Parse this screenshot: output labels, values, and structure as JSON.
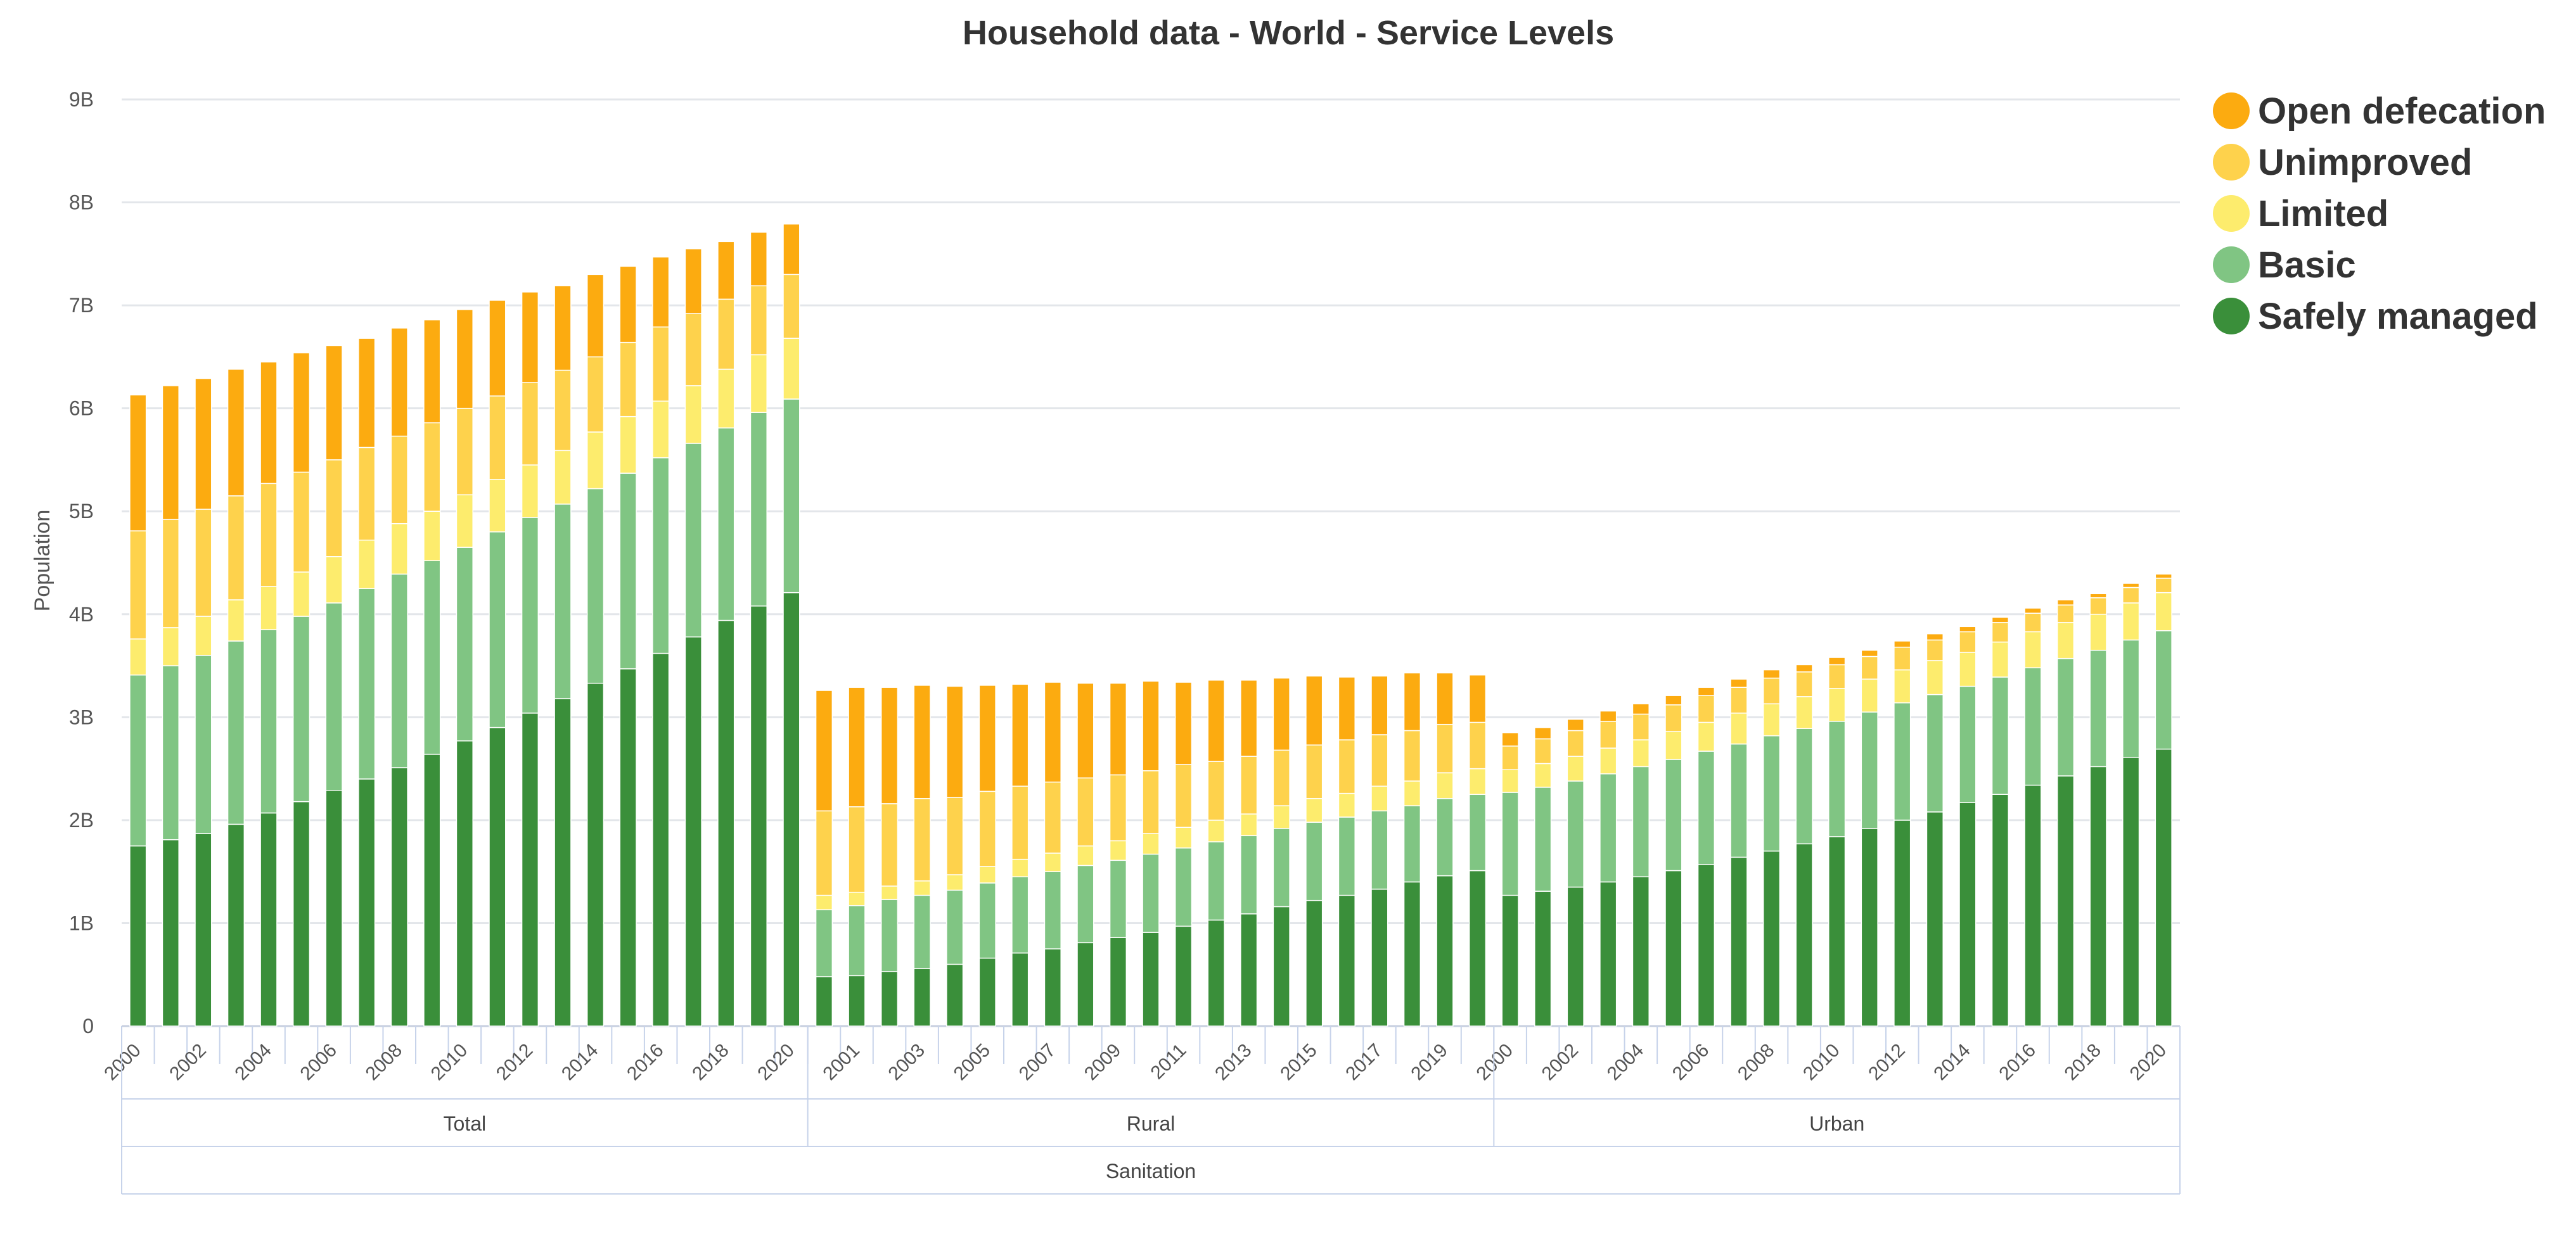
{
  "chart_data": {
    "type": "bar",
    "stacked": true,
    "title": "Household data - World - Service Levels",
    "xlabel": "",
    "ylabel": "Population",
    "ylim": [
      0,
      9000000000
    ],
    "y_ticks": [
      {
        "value": 0,
        "label": "0"
      },
      {
        "value": 1000000000,
        "label": "1B"
      },
      {
        "value": 2000000000,
        "label": "2B"
      },
      {
        "value": 3000000000,
        "label": "3B"
      },
      {
        "value": 4000000000,
        "label": "4B"
      },
      {
        "value": 5000000000,
        "label": "5B"
      },
      {
        "value": 6000000000,
        "label": "6B"
      },
      {
        "value": 7000000000,
        "label": "7B"
      },
      {
        "value": 8000000000,
        "label": "8B"
      },
      {
        "value": 9000000000,
        "label": "9B"
      }
    ],
    "legend_position": "top-right",
    "categories": [
      "2000",
      "2001",
      "2002",
      "2003",
      "2004",
      "2005",
      "2006",
      "2007",
      "2008",
      "2009",
      "2010",
      "2011",
      "2012",
      "2013",
      "2014",
      "2015",
      "2016",
      "2017",
      "2018",
      "2019",
      "2020",
      "2000",
      "2001",
      "2002",
      "2003",
      "2004",
      "2005",
      "2006",
      "2007",
      "2008",
      "2009",
      "2010",
      "2011",
      "2012",
      "2013",
      "2014",
      "2015",
      "2016",
      "2017",
      "2018",
      "2019",
      "2020",
      "2000",
      "2001",
      "2002",
      "2003",
      "2004",
      "2005",
      "2006",
      "2007",
      "2008",
      "2009",
      "2010",
      "2011",
      "2012",
      "2013",
      "2014",
      "2015",
      "2016",
      "2017",
      "2018",
      "2019",
      "2020"
    ],
    "x_tick_labels": [
      "2000",
      "2002",
      "2004",
      "2006",
      "2008",
      "2010",
      "2012",
      "2014",
      "2016",
      "2018",
      "2020",
      "2001",
      "2003",
      "2005",
      "2007",
      "2009",
      "2011",
      "2013",
      "2015",
      "2017",
      "2019",
      "2000",
      "2002",
      "2004",
      "2006",
      "2008",
      "2010",
      "2012",
      "2014",
      "2016",
      "2018",
      "2020"
    ],
    "groups": [
      {
        "name": "Total",
        "count": 21
      },
      {
        "name": "Rural",
        "count": 21
      },
      {
        "name": "Urban",
        "count": 21
      }
    ],
    "super_group": "Sanitation",
    "series": [
      {
        "name": "Safely managed",
        "color": "#3a8f3a",
        "values": [
          1.75,
          1.81,
          1.87,
          1.96,
          2.07,
          2.18,
          2.29,
          2.4,
          2.51,
          2.64,
          2.77,
          2.9,
          3.04,
          3.18,
          3.33,
          3.47,
          3.62,
          3.78,
          3.94,
          4.08,
          4.21,
          0.48,
          0.49,
          0.53,
          0.56,
          0.6,
          0.66,
          0.71,
          0.75,
          0.81,
          0.86,
          0.91,
          0.97,
          1.03,
          1.09,
          1.16,
          1.22,
          1.27,
          1.33,
          1.4,
          1.46,
          1.51,
          1.27,
          1.31,
          1.35,
          1.4,
          1.45,
          1.51,
          1.57,
          1.64,
          1.7,
          1.77,
          1.84,
          1.92,
          2.0,
          2.08,
          2.17,
          2.25,
          2.34,
          2.43,
          2.52,
          2.61,
          2.69
        ]
      },
      {
        "name": "Basic",
        "color": "#80c583",
        "values": [
          1.66,
          1.69,
          1.73,
          1.78,
          1.78,
          1.8,
          1.82,
          1.85,
          1.88,
          1.88,
          1.88,
          1.9,
          1.9,
          1.89,
          1.89,
          1.9,
          1.9,
          1.88,
          1.87,
          1.88,
          1.88,
          0.65,
          0.68,
          0.7,
          0.71,
          0.72,
          0.73,
          0.74,
          0.75,
          0.75,
          0.75,
          0.76,
          0.76,
          0.76,
          0.76,
          0.76,
          0.76,
          0.76,
          0.76,
          0.74,
          0.75,
          0.74,
          1.0,
          1.01,
          1.03,
          1.05,
          1.07,
          1.08,
          1.1,
          1.1,
          1.12,
          1.12,
          1.12,
          1.13,
          1.14,
          1.14,
          1.13,
          1.14,
          1.14,
          1.14,
          1.13,
          1.14,
          1.15
        ]
      },
      {
        "name": "Limited",
        "color": "#fdec6d",
        "values": [
          0.35,
          0.37,
          0.38,
          0.4,
          0.42,
          0.43,
          0.45,
          0.47,
          0.49,
          0.48,
          0.51,
          0.51,
          0.51,
          0.52,
          0.55,
          0.55,
          0.55,
          0.56,
          0.57,
          0.56,
          0.59,
          0.14,
          0.13,
          0.13,
          0.14,
          0.15,
          0.16,
          0.17,
          0.18,
          0.19,
          0.19,
          0.2,
          0.2,
          0.21,
          0.21,
          0.22,
          0.23,
          0.23,
          0.24,
          0.24,
          0.25,
          0.25,
          0.22,
          0.23,
          0.24,
          0.25,
          0.26,
          0.27,
          0.28,
          0.3,
          0.31,
          0.31,
          0.32,
          0.32,
          0.32,
          0.33,
          0.33,
          0.34,
          0.35,
          0.35,
          0.35,
          0.36,
          0.37
        ]
      },
      {
        "name": "Unimproved",
        "color": "#fed24c",
        "values": [
          1.05,
          1.05,
          1.04,
          1.01,
          1.0,
          0.97,
          0.94,
          0.9,
          0.85,
          0.86,
          0.84,
          0.81,
          0.8,
          0.78,
          0.73,
          0.72,
          0.72,
          0.7,
          0.68,
          0.67,
          0.62,
          0.82,
          0.83,
          0.8,
          0.8,
          0.75,
          0.73,
          0.71,
          0.69,
          0.66,
          0.64,
          0.61,
          0.61,
          0.57,
          0.56,
          0.54,
          0.52,
          0.52,
          0.5,
          0.49,
          0.47,
          0.45,
          0.23,
          0.24,
          0.25,
          0.26,
          0.25,
          0.26,
          0.26,
          0.25,
          0.25,
          0.24,
          0.23,
          0.22,
          0.22,
          0.2,
          0.2,
          0.19,
          0.18,
          0.17,
          0.16,
          0.15,
          0.14
        ]
      },
      {
        "name": "Open defecation",
        "color": "#fcab10",
        "values": [
          1.32,
          1.3,
          1.27,
          1.23,
          1.18,
          1.16,
          1.11,
          1.06,
          1.05,
          1.0,
          0.96,
          0.93,
          0.88,
          0.82,
          0.8,
          0.74,
          0.68,
          0.63,
          0.56,
          0.52,
          0.49,
          1.17,
          1.16,
          1.13,
          1.1,
          1.08,
          1.03,
          0.99,
          0.97,
          0.92,
          0.89,
          0.87,
          0.8,
          0.79,
          0.74,
          0.7,
          0.67,
          0.61,
          0.57,
          0.56,
          0.5,
          0.46,
          0.13,
          0.11,
          0.11,
          0.1,
          0.1,
          0.09,
          0.08,
          0.08,
          0.08,
          0.07,
          0.07,
          0.06,
          0.06,
          0.06,
          0.05,
          0.05,
          0.05,
          0.05,
          0.04,
          0.04,
          0.04
        ]
      }
    ],
    "value_unit": "billion people"
  }
}
